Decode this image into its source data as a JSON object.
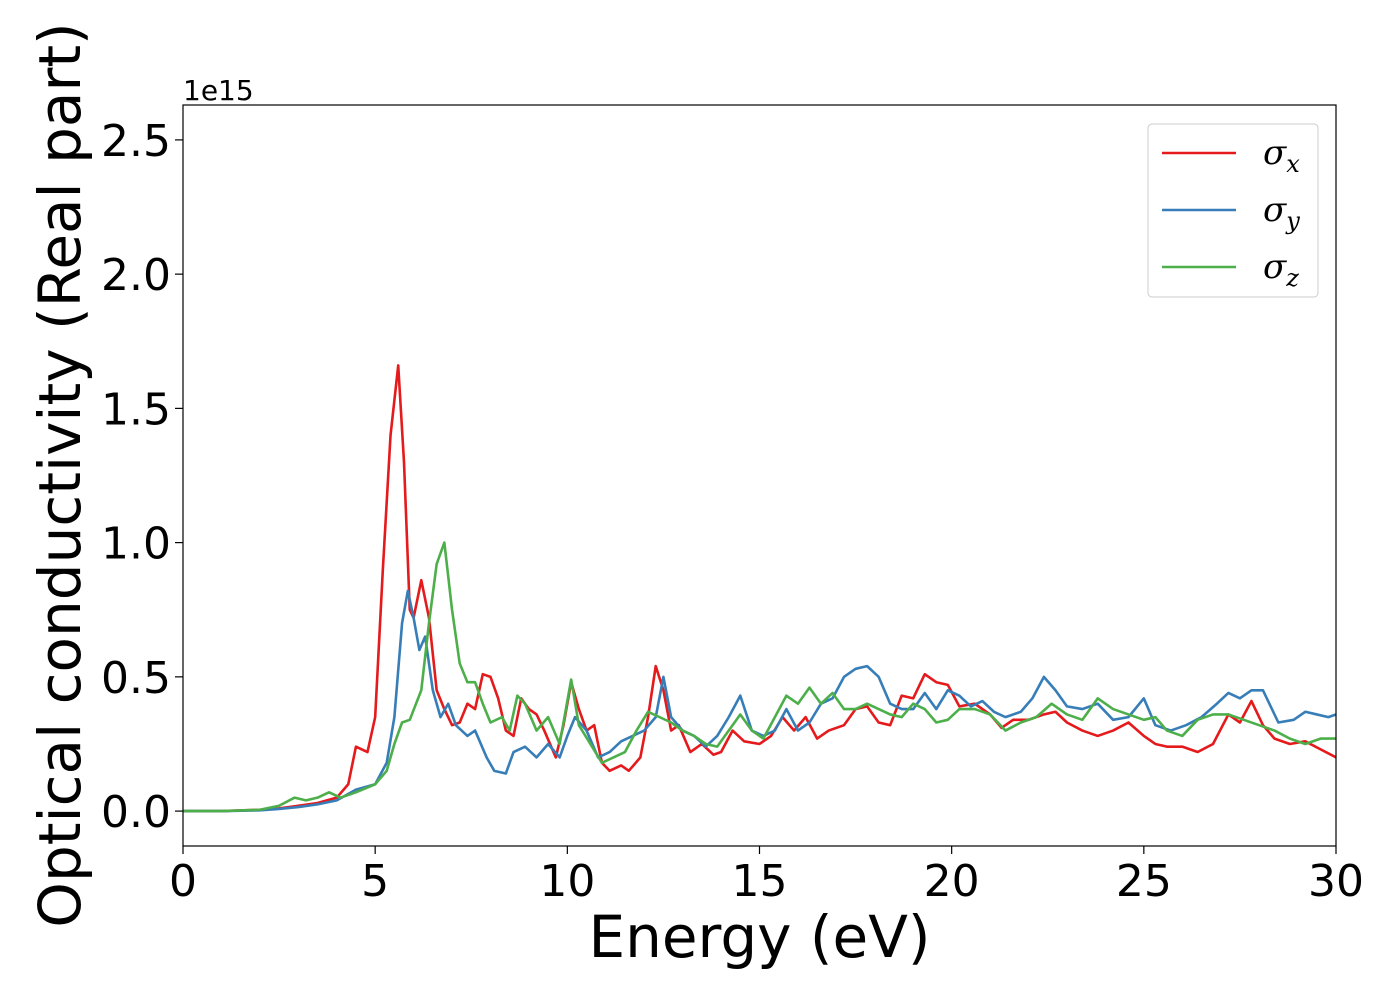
{
  "chart_data": {
    "type": "line",
    "xlabel": "Energy (eV)",
    "ylabel": "Optical conductivity (Real part)",
    "y_offset_label": "1e15",
    "xlim": [
      0,
      30
    ],
    "ylim": [
      -0.13,
      2.63
    ],
    "xticks": [
      0,
      5,
      10,
      15,
      20,
      25,
      30
    ],
    "xtick_labels": [
      "0",
      "5",
      "10",
      "15",
      "20",
      "25",
      "30"
    ],
    "yticks": [
      0.0,
      0.5,
      1.0,
      1.5,
      2.0,
      2.5
    ],
    "ytick_labels": [
      "0.0",
      "0.5",
      "1.0",
      "1.5",
      "2.0",
      "2.5"
    ],
    "grid": false,
    "legend_position": "top-right",
    "series": [
      {
        "name": "σx",
        "symbol": "σ",
        "subscript": "x",
        "color": "#e41a1c",
        "points": [
          [
            0,
            0
          ],
          [
            1,
            0
          ],
          [
            2,
            0.005
          ],
          [
            2.5,
            0.01
          ],
          [
            3,
            0.02
          ],
          [
            3.5,
            0.03
          ],
          [
            4,
            0.05
          ],
          [
            4.3,
            0.1
          ],
          [
            4.5,
            0.24
          ],
          [
            4.8,
            0.22
          ],
          [
            5.0,
            0.35
          ],
          [
            5.2,
            0.9
          ],
          [
            5.4,
            1.4
          ],
          [
            5.6,
            1.66
          ],
          [
            5.75,
            1.3
          ],
          [
            5.9,
            0.75
          ],
          [
            6.0,
            0.72
          ],
          [
            6.2,
            0.86
          ],
          [
            6.4,
            0.72
          ],
          [
            6.6,
            0.45
          ],
          [
            6.8,
            0.38
          ],
          [
            7.0,
            0.32
          ],
          [
            7.2,
            0.33
          ],
          [
            7.4,
            0.4
          ],
          [
            7.6,
            0.38
          ],
          [
            7.8,
            0.51
          ],
          [
            8.0,
            0.5
          ],
          [
            8.2,
            0.42
          ],
          [
            8.4,
            0.3
          ],
          [
            8.6,
            0.28
          ],
          [
            8.8,
            0.42
          ],
          [
            9.0,
            0.38
          ],
          [
            9.2,
            0.36
          ],
          [
            9.4,
            0.3
          ],
          [
            9.7,
            0.2
          ],
          [
            9.9,
            0.32
          ],
          [
            10.1,
            0.48
          ],
          [
            10.3,
            0.38
          ],
          [
            10.5,
            0.3
          ],
          [
            10.7,
            0.32
          ],
          [
            10.9,
            0.18
          ],
          [
            11.1,
            0.15
          ],
          [
            11.4,
            0.17
          ],
          [
            11.6,
            0.15
          ],
          [
            11.9,
            0.2
          ],
          [
            12.1,
            0.35
          ],
          [
            12.3,
            0.54
          ],
          [
            12.5,
            0.45
          ],
          [
            12.7,
            0.3
          ],
          [
            12.9,
            0.32
          ],
          [
            13.2,
            0.22
          ],
          [
            13.5,
            0.25
          ],
          [
            13.8,
            0.21
          ],
          [
            14.0,
            0.22
          ],
          [
            14.3,
            0.3
          ],
          [
            14.6,
            0.26
          ],
          [
            15.0,
            0.25
          ],
          [
            15.3,
            0.28
          ],
          [
            15.6,
            0.35
          ],
          [
            15.9,
            0.3
          ],
          [
            16.2,
            0.35
          ],
          [
            16.5,
            0.27
          ],
          [
            16.8,
            0.3
          ],
          [
            17.2,
            0.32
          ],
          [
            17.5,
            0.38
          ],
          [
            17.8,
            0.39
          ],
          [
            18.1,
            0.33
          ],
          [
            18.4,
            0.32
          ],
          [
            18.7,
            0.43
          ],
          [
            19.0,
            0.42
          ],
          [
            19.3,
            0.51
          ],
          [
            19.6,
            0.48
          ],
          [
            19.9,
            0.47
          ],
          [
            20.2,
            0.39
          ],
          [
            20.6,
            0.4
          ],
          [
            21.0,
            0.36
          ],
          [
            21.3,
            0.31
          ],
          [
            21.6,
            0.34
          ],
          [
            22.0,
            0.34
          ],
          [
            22.4,
            0.36
          ],
          [
            22.7,
            0.37
          ],
          [
            23.0,
            0.33
          ],
          [
            23.4,
            0.3
          ],
          [
            23.8,
            0.28
          ],
          [
            24.2,
            0.3
          ],
          [
            24.6,
            0.33
          ],
          [
            25.0,
            0.28
          ],
          [
            25.3,
            0.25
          ],
          [
            25.6,
            0.24
          ],
          [
            26.0,
            0.24
          ],
          [
            26.4,
            0.22
          ],
          [
            26.8,
            0.25
          ],
          [
            27.2,
            0.36
          ],
          [
            27.5,
            0.33
          ],
          [
            27.8,
            0.41
          ],
          [
            28.1,
            0.32
          ],
          [
            28.4,
            0.27
          ],
          [
            28.8,
            0.25
          ],
          [
            29.2,
            0.26
          ],
          [
            29.6,
            0.23
          ],
          [
            30.0,
            0.2
          ]
        ]
      },
      {
        "name": "σy",
        "symbol": "σ",
        "subscript": "y",
        "color": "#377eb8",
        "points": [
          [
            0,
            0
          ],
          [
            1,
            0
          ],
          [
            2,
            0.003
          ],
          [
            2.5,
            0.008
          ],
          [
            3,
            0.015
          ],
          [
            3.5,
            0.025
          ],
          [
            4,
            0.04
          ],
          [
            4.5,
            0.08
          ],
          [
            5.0,
            0.1
          ],
          [
            5.3,
            0.18
          ],
          [
            5.5,
            0.35
          ],
          [
            5.7,
            0.7
          ],
          [
            5.85,
            0.82
          ],
          [
            6.0,
            0.72
          ],
          [
            6.15,
            0.6
          ],
          [
            6.3,
            0.65
          ],
          [
            6.5,
            0.45
          ],
          [
            6.7,
            0.35
          ],
          [
            6.9,
            0.4
          ],
          [
            7.1,
            0.32
          ],
          [
            7.4,
            0.28
          ],
          [
            7.6,
            0.3
          ],
          [
            7.9,
            0.2
          ],
          [
            8.1,
            0.15
          ],
          [
            8.4,
            0.14
          ],
          [
            8.6,
            0.22
          ],
          [
            8.9,
            0.24
          ],
          [
            9.2,
            0.2
          ],
          [
            9.5,
            0.25
          ],
          [
            9.8,
            0.2
          ],
          [
            10.0,
            0.28
          ],
          [
            10.2,
            0.35
          ],
          [
            10.5,
            0.3
          ],
          [
            10.8,
            0.2
          ],
          [
            11.1,
            0.22
          ],
          [
            11.4,
            0.26
          ],
          [
            11.7,
            0.28
          ],
          [
            12.0,
            0.3
          ],
          [
            12.3,
            0.35
          ],
          [
            12.5,
            0.5
          ],
          [
            12.7,
            0.35
          ],
          [
            13.0,
            0.3
          ],
          [
            13.3,
            0.28
          ],
          [
            13.6,
            0.24
          ],
          [
            13.9,
            0.28
          ],
          [
            14.2,
            0.35
          ],
          [
            14.5,
            0.43
          ],
          [
            14.8,
            0.3
          ],
          [
            15.1,
            0.28
          ],
          [
            15.4,
            0.3
          ],
          [
            15.7,
            0.38
          ],
          [
            16.0,
            0.3
          ],
          [
            16.3,
            0.33
          ],
          [
            16.6,
            0.4
          ],
          [
            16.9,
            0.42
          ],
          [
            17.2,
            0.5
          ],
          [
            17.5,
            0.53
          ],
          [
            17.8,
            0.54
          ],
          [
            18.1,
            0.5
          ],
          [
            18.4,
            0.4
          ],
          [
            18.7,
            0.38
          ],
          [
            19.0,
            0.38
          ],
          [
            19.3,
            0.44
          ],
          [
            19.6,
            0.38
          ],
          [
            19.9,
            0.45
          ],
          [
            20.2,
            0.43
          ],
          [
            20.5,
            0.39
          ],
          [
            20.8,
            0.41
          ],
          [
            21.1,
            0.37
          ],
          [
            21.4,
            0.35
          ],
          [
            21.8,
            0.37
          ],
          [
            22.1,
            0.42
          ],
          [
            22.4,
            0.5
          ],
          [
            22.7,
            0.45
          ],
          [
            23.0,
            0.39
          ],
          [
            23.4,
            0.38
          ],
          [
            23.8,
            0.4
          ],
          [
            24.2,
            0.34
          ],
          [
            24.6,
            0.35
          ],
          [
            25.0,
            0.42
          ],
          [
            25.3,
            0.32
          ],
          [
            25.7,
            0.3
          ],
          [
            26.1,
            0.32
          ],
          [
            26.5,
            0.35
          ],
          [
            26.9,
            0.4
          ],
          [
            27.2,
            0.44
          ],
          [
            27.5,
            0.42
          ],
          [
            27.8,
            0.45
          ],
          [
            28.1,
            0.45
          ],
          [
            28.5,
            0.33
          ],
          [
            28.9,
            0.34
          ],
          [
            29.2,
            0.37
          ],
          [
            29.5,
            0.36
          ],
          [
            29.8,
            0.35
          ],
          [
            30.0,
            0.36
          ]
        ]
      },
      {
        "name": "σz",
        "symbol": "σ",
        "subscript": "z",
        "color": "#4daf4a",
        "points": [
          [
            0,
            0
          ],
          [
            1,
            0
          ],
          [
            2,
            0.005
          ],
          [
            2.5,
            0.02
          ],
          [
            2.9,
            0.05
          ],
          [
            3.2,
            0.04
          ],
          [
            3.5,
            0.05
          ],
          [
            3.8,
            0.07
          ],
          [
            4.1,
            0.05
          ],
          [
            4.5,
            0.07
          ],
          [
            5.0,
            0.1
          ],
          [
            5.3,
            0.15
          ],
          [
            5.5,
            0.25
          ],
          [
            5.7,
            0.33
          ],
          [
            5.9,
            0.34
          ],
          [
            6.2,
            0.45
          ],
          [
            6.4,
            0.7
          ],
          [
            6.6,
            0.92
          ],
          [
            6.8,
            1.0
          ],
          [
            7.0,
            0.75
          ],
          [
            7.2,
            0.55
          ],
          [
            7.4,
            0.48
          ],
          [
            7.6,
            0.48
          ],
          [
            7.8,
            0.4
          ],
          [
            8.0,
            0.33
          ],
          [
            8.3,
            0.35
          ],
          [
            8.5,
            0.3
          ],
          [
            8.7,
            0.43
          ],
          [
            8.9,
            0.4
          ],
          [
            9.2,
            0.3
          ],
          [
            9.5,
            0.35
          ],
          [
            9.8,
            0.25
          ],
          [
            10.1,
            0.49
          ],
          [
            10.3,
            0.32
          ],
          [
            10.6,
            0.25
          ],
          [
            10.9,
            0.18
          ],
          [
            11.2,
            0.2
          ],
          [
            11.5,
            0.22
          ],
          [
            11.8,
            0.3
          ],
          [
            12.1,
            0.37
          ],
          [
            12.4,
            0.35
          ],
          [
            12.7,
            0.33
          ],
          [
            13.0,
            0.3
          ],
          [
            13.3,
            0.28
          ],
          [
            13.6,
            0.25
          ],
          [
            13.9,
            0.24
          ],
          [
            14.2,
            0.3
          ],
          [
            14.5,
            0.36
          ],
          [
            14.8,
            0.3
          ],
          [
            15.1,
            0.27
          ],
          [
            15.4,
            0.35
          ],
          [
            15.7,
            0.43
          ],
          [
            16.0,
            0.4
          ],
          [
            16.3,
            0.46
          ],
          [
            16.6,
            0.4
          ],
          [
            16.9,
            0.44
          ],
          [
            17.2,
            0.38
          ],
          [
            17.5,
            0.38
          ],
          [
            17.8,
            0.4
          ],
          [
            18.1,
            0.38
          ],
          [
            18.4,
            0.36
          ],
          [
            18.7,
            0.35
          ],
          [
            19.0,
            0.4
          ],
          [
            19.3,
            0.38
          ],
          [
            19.6,
            0.33
          ],
          [
            19.9,
            0.34
          ],
          [
            20.2,
            0.38
          ],
          [
            20.6,
            0.38
          ],
          [
            21.0,
            0.36
          ],
          [
            21.4,
            0.3
          ],
          [
            21.8,
            0.33
          ],
          [
            22.2,
            0.35
          ],
          [
            22.6,
            0.4
          ],
          [
            23.0,
            0.36
          ],
          [
            23.4,
            0.34
          ],
          [
            23.8,
            0.42
          ],
          [
            24.2,
            0.38
          ],
          [
            24.6,
            0.36
          ],
          [
            25.0,
            0.34
          ],
          [
            25.3,
            0.35
          ],
          [
            25.6,
            0.3
          ],
          [
            26.0,
            0.28
          ],
          [
            26.4,
            0.34
          ],
          [
            26.8,
            0.36
          ],
          [
            27.2,
            0.36
          ],
          [
            27.6,
            0.34
          ],
          [
            28.0,
            0.32
          ],
          [
            28.4,
            0.3
          ],
          [
            28.8,
            0.27
          ],
          [
            29.2,
            0.25
          ],
          [
            29.6,
            0.27
          ],
          [
            30.0,
            0.27
          ]
        ]
      }
    ]
  }
}
